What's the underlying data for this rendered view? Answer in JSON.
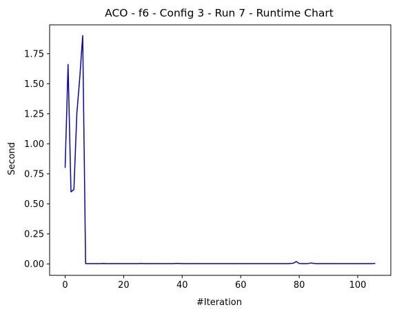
{
  "chart_data": {
    "type": "line",
    "title": "ACO - f6 - Config 3 - Run 7 - Runtime Chart",
    "xlabel": "#Iteration",
    "ylabel": "Second",
    "xlim": [
      -5.3,
      111.3
    ],
    "ylim": [
      -0.095,
      1.99
    ],
    "xticks": [
      0,
      20,
      40,
      60,
      80,
      100
    ],
    "yticks": [
      0.0,
      0.25,
      0.5,
      0.75,
      1.0,
      1.25,
      1.5,
      1.75
    ],
    "ytick_labels": [
      "0.00",
      "0.25",
      "0.50",
      "0.75",
      "1.00",
      "1.25",
      "1.50",
      "1.75"
    ],
    "grid": false,
    "legend": "none",
    "series": [
      {
        "color": "#0000cc",
        "x": [
          0,
          1,
          2,
          3,
          4,
          5,
          6,
          7,
          8,
          9,
          10,
          11,
          12,
          13,
          14,
          15,
          16,
          17,
          18,
          19,
          20,
          21,
          22,
          23,
          24,
          25,
          26,
          27,
          28,
          29,
          30,
          31,
          32,
          33,
          34,
          35,
          36,
          37,
          38,
          39,
          40,
          41,
          42,
          43,
          44,
          45,
          46,
          47,
          48,
          49,
          50,
          51,
          52,
          53,
          54,
          55,
          56,
          57,
          58,
          59,
          60,
          61,
          62,
          63,
          64,
          65,
          66,
          67,
          68,
          69,
          70,
          71,
          72,
          73,
          74,
          75,
          76,
          77,
          78,
          79,
          80,
          81,
          82,
          83,
          84,
          85,
          86,
          87,
          88,
          89,
          90,
          91,
          92,
          93,
          94,
          95,
          96,
          97,
          98,
          99,
          100,
          101,
          102,
          103,
          104,
          105,
          106
        ],
        "y": [
          0.8,
          1.66,
          0.6,
          0.62,
          1.25,
          1.55,
          1.9,
          0.003,
          0.003,
          0.003,
          0.003,
          0.003,
          0.003,
          0.004,
          0.003,
          0.003,
          0.003,
          0.003,
          0.003,
          0.003,
          0.003,
          0.003,
          0.003,
          0.003,
          0.003,
          0.003,
          0.004,
          0.003,
          0.003,
          0.003,
          0.003,
          0.003,
          0.003,
          0.003,
          0.003,
          0.003,
          0.003,
          0.003,
          0.004,
          0.004,
          0.003,
          0.003,
          0.003,
          0.003,
          0.003,
          0.003,
          0.003,
          0.003,
          0.003,
          0.003,
          0.003,
          0.003,
          0.003,
          0.003,
          0.003,
          0.003,
          0.003,
          0.003,
          0.003,
          0.003,
          0.003,
          0.003,
          0.003,
          0.003,
          0.003,
          0.003,
          0.003,
          0.003,
          0.003,
          0.003,
          0.003,
          0.003,
          0.003,
          0.003,
          0.003,
          0.003,
          0.003,
          0.004,
          0.006,
          0.02,
          0.004,
          0.003,
          0.003,
          0.003,
          0.008,
          0.004,
          0.003,
          0.003,
          0.003,
          0.003,
          0.003,
          0.003,
          0.003,
          0.003,
          0.003,
          0.003,
          0.003,
          0.003,
          0.003,
          0.003,
          0.003,
          0.003,
          0.003,
          0.003,
          0.003,
          0.003,
          0.005
        ]
      }
    ]
  }
}
